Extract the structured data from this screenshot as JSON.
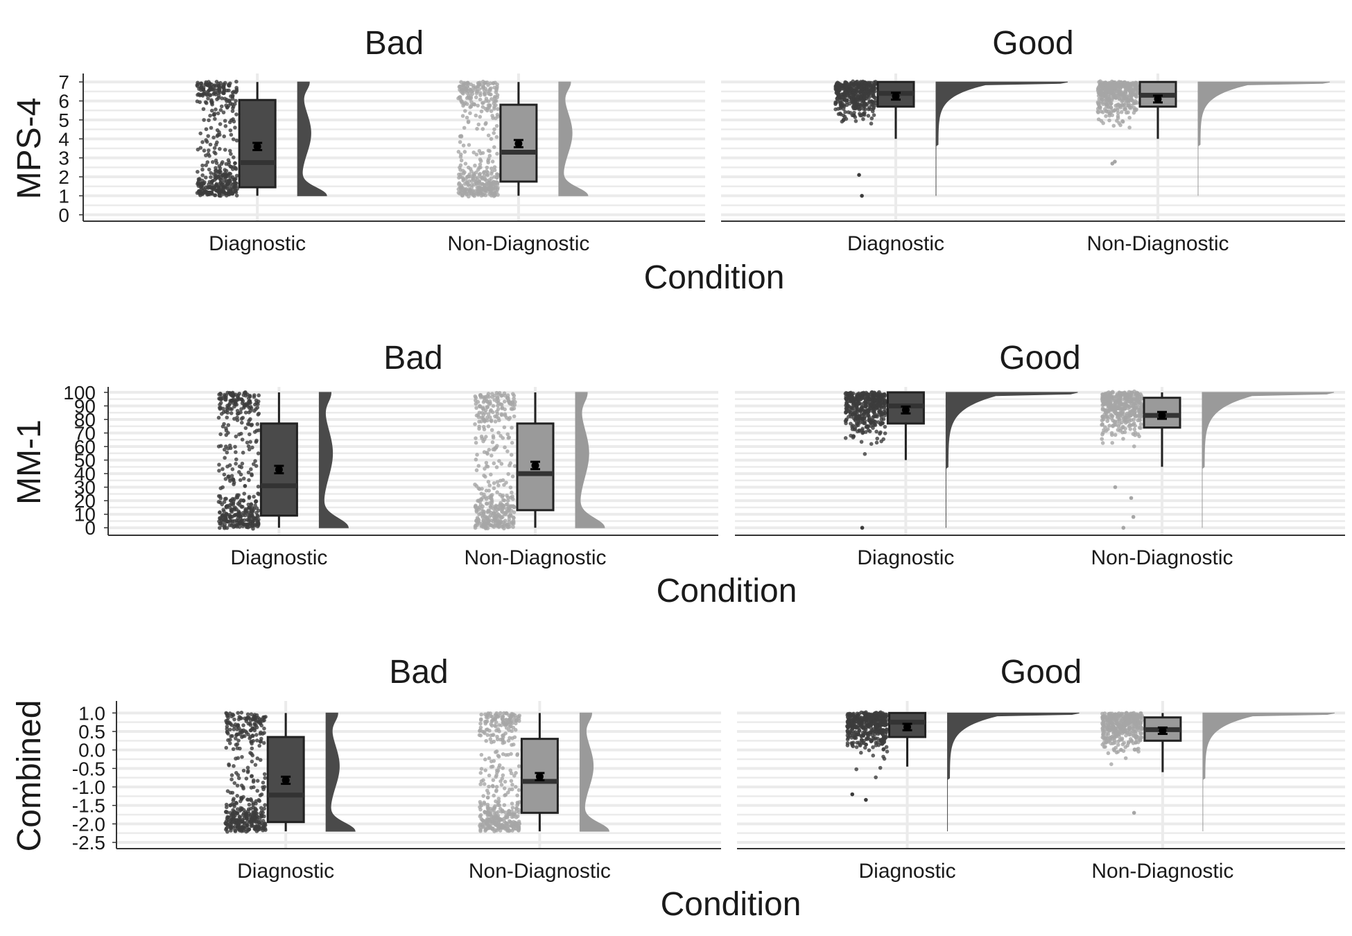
{
  "colors": {
    "diagnostic_fill": "#4a4a4a",
    "diagnostic_point": "#3c3c3c",
    "nondiagnostic_fill": "#9a9a9a",
    "nondiagnostic_point": "#a6a6a6",
    "grid": "#ebebeb",
    "axis": "#333333",
    "mean_marker": "#000000"
  },
  "chart_data": [
    {
      "type": "raincloud",
      "ylabel": "MPS-4",
      "xlabel": "Condition",
      "ylim": [
        -0.3,
        7.3
      ],
      "yticks": [
        "0",
        "1",
        "2",
        "3",
        "4",
        "5",
        "6",
        "7"
      ],
      "ytick_values": [
        0,
        1,
        2,
        3,
        4,
        5,
        6,
        7
      ],
      "point_span": [
        1,
        7
      ],
      "facets": [
        {
          "title": "Bad",
          "groups": [
            {
              "label": "Diagnostic",
              "q1": 1.45,
              "median": 2.75,
              "q3": 6.05,
              "whisker_low": 1,
              "whisker_high": 7,
              "mean": 3.6,
              "mean_se": 0.08,
              "dist": "bimodal"
            },
            {
              "label": "Non-Diagnostic",
              "q1": 1.75,
              "median": 3.3,
              "q3": 5.8,
              "whisker_low": 1,
              "whisker_high": 7,
              "mean": 3.75,
              "mean_se": 0.08,
              "dist": "bimodal"
            }
          ]
        },
        {
          "title": "Good",
          "groups": [
            {
              "label": "Diagnostic",
              "q1": 5.7,
              "median": 6.4,
              "q3": 7.0,
              "whisker_low": 4,
              "whisker_high": 7,
              "mean": 6.25,
              "mean_se": 0.07,
              "dist": "high",
              "outliers": [
                1,
                2.1
              ]
            },
            {
              "label": "Non-Diagnostic",
              "q1": 5.7,
              "median": 6.3,
              "q3": 7.0,
              "whisker_low": 4,
              "whisker_high": 7,
              "mean": 6.1,
              "mean_se": 0.07,
              "dist": "high",
              "outliers": [
                2.7,
                2.8
              ]
            }
          ]
        }
      ]
    },
    {
      "type": "raincloud",
      "ylabel": "MM-1",
      "xlabel": "Condition",
      "ylim": [
        -5,
        102
      ],
      "yticks": [
        "0",
        "10",
        "20",
        "30",
        "40",
        "50",
        "60",
        "70",
        "80",
        "90",
        "100"
      ],
      "ytick_values": [
        0,
        10,
        20,
        30,
        40,
        50,
        60,
        70,
        80,
        90,
        100
      ],
      "point_span": [
        0,
        100
      ],
      "facets": [
        {
          "title": "Bad",
          "groups": [
            {
              "label": "Diagnostic",
              "q1": 9,
              "median": 31,
              "q3": 77,
              "whisker_low": 0,
              "whisker_high": 100,
              "mean": 43,
              "mean_se": 1.2,
              "dist": "bimodal"
            },
            {
              "label": "Non-Diagnostic",
              "q1": 13,
              "median": 40,
              "q3": 77,
              "whisker_low": 0,
              "whisker_high": 100,
              "mean": 46,
              "mean_se": 1.2,
              "dist": "bimodal"
            }
          ]
        },
        {
          "title": "Good",
          "groups": [
            {
              "label": "Diagnostic",
              "q1": 77,
              "median": 90,
              "q3": 100,
              "whisker_low": 50,
              "whisker_high": 100,
              "mean": 87,
              "mean_se": 1.0,
              "dist": "high",
              "outliers": [
                0
              ]
            },
            {
              "label": "Non-Diagnostic",
              "q1": 74,
              "median": 83,
              "q3": 96,
              "whisker_low": 45,
              "whisker_high": 100,
              "mean": 83,
              "mean_se": 1.0,
              "dist": "high",
              "outliers": [
                0,
                8,
                22,
                30
              ]
            }
          ]
        }
      ]
    },
    {
      "type": "raincloud",
      "ylabel": "Combined",
      "xlabel": "Condition",
      "ylim": [
        -2.65,
        1.25
      ],
      "yticks": [
        "-2.5",
        "-2.0",
        "-1.5",
        "-1.0",
        "-0.5",
        "0.0",
        "0.5",
        "1.0"
      ],
      "ytick_values": [
        -2.5,
        -2.0,
        -1.5,
        -1.0,
        -0.5,
        0.0,
        0.5,
        1.0
      ],
      "point_span": [
        -2.2,
        1.0
      ],
      "facets": [
        {
          "title": "Bad",
          "groups": [
            {
              "label": "Diagnostic",
              "q1": -1.95,
              "median": -1.22,
              "q3": 0.35,
              "whisker_low": -2.2,
              "whisker_high": 1.0,
              "mean": -0.82,
              "mean_se": 0.04,
              "dist": "bimodal"
            },
            {
              "label": "Non-Diagnostic",
              "q1": -1.7,
              "median": -0.85,
              "q3": 0.3,
              "whisker_low": -2.2,
              "whisker_high": 1.0,
              "mean": -0.72,
              "mean_se": 0.04,
              "dist": "bimodal"
            }
          ]
        },
        {
          "title": "Good",
          "groups": [
            {
              "label": "Diagnostic",
              "q1": 0.35,
              "median": 0.75,
              "q3": 1.0,
              "whisker_low": -0.45,
              "whisker_high": 1.0,
              "mean": 0.62,
              "mean_se": 0.03,
              "dist": "high",
              "outliers": [
                -1.2,
                -1.35
              ]
            },
            {
              "label": "Non-Diagnostic",
              "q1": 0.25,
              "median": 0.55,
              "q3": 0.88,
              "whisker_low": -0.6,
              "whisker_high": 1.0,
              "mean": 0.52,
              "mean_se": 0.03,
              "dist": "high",
              "outliers": [
                -1.7
              ]
            }
          ]
        }
      ]
    }
  ]
}
